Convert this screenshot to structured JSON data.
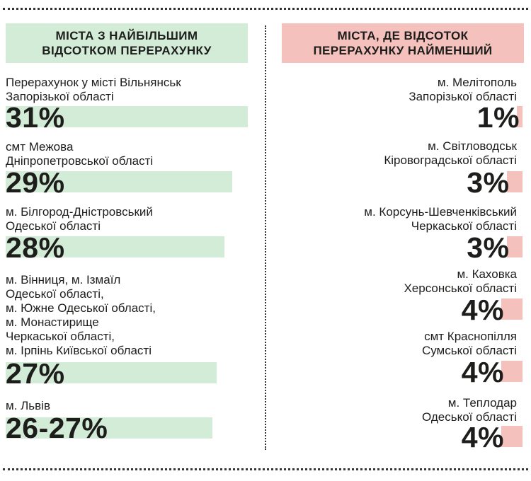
{
  "colors": {
    "green": "#d3ecd7",
    "pink": "#f5c1bc",
    "text": "#1d1d1b",
    "dots": "#333333"
  },
  "left": {
    "title": "Міста з найбільшим\nвідсотком перерахунку",
    "items": [
      {
        "label": "Перерахунок у місті Вільнянськ\nЗапорізької області",
        "value_text": "31%",
        "value": 31
      },
      {
        "label": "смт Межова\nДніпропетровської області",
        "value_text": "29%",
        "value": 29
      },
      {
        "label": "м. Білгород-Дністровський\nОдеської області",
        "value_text": "28%",
        "value": 28
      },
      {
        "label": "м. Вінниця, м. Ізмаїл\nОдеської області,\nм. Южне Одеської області,\nм. Монастирище\nЧеркаської області,\nм. Ірпінь Київської області",
        "value_text": "27%",
        "value": 27
      },
      {
        "label": "м. Львів",
        "value_text": "26-27%",
        "value": 26.5
      }
    ]
  },
  "right": {
    "title": "Міста, де відсоток\nперерахунку найменший",
    "items": [
      {
        "label": "м. Мелітополь\nЗапорізької області",
        "value_text": "1%",
        "value": 1
      },
      {
        "label": "м. Світловодськ\nКіровоградської області",
        "value_text": "3%",
        "value": 3
      },
      {
        "label": "м. Корсунь-Шевченківський\nЧеркаської області",
        "value_text": "3%",
        "value": 3
      },
      {
        "label": "м. Каховка\nХерсонської області",
        "value_text": "4%",
        "value": 4
      },
      {
        "label": "смт Краснопілля\nСумської області",
        "value_text": "4%",
        "value": 4
      },
      {
        "label": "м. Теплодар\nОдеської області",
        "value_text": "4%",
        "value": 4
      }
    ]
  },
  "chart_data": [
    {
      "type": "bar",
      "title": "Міста з найбільшим відсотком перерахунку",
      "categories": [
        "Вільнянськ",
        "Межова",
        "Білгород-Дністровський",
        "Вінниця, Ізмаїл, Южне, Монастирище, Ірпінь",
        "Львів"
      ],
      "values": [
        31,
        29,
        28,
        27,
        26.5
      ],
      "unit": "%"
    },
    {
      "type": "bar",
      "title": "Міста, де відсоток перерахунку найменший",
      "categories": [
        "Мелітополь",
        "Світловодськ",
        "Корсунь-Шевченківський",
        "Каховка",
        "Краснопілля",
        "Теплодар"
      ],
      "values": [
        1,
        3,
        3,
        4,
        4,
        4
      ],
      "unit": "%"
    }
  ]
}
